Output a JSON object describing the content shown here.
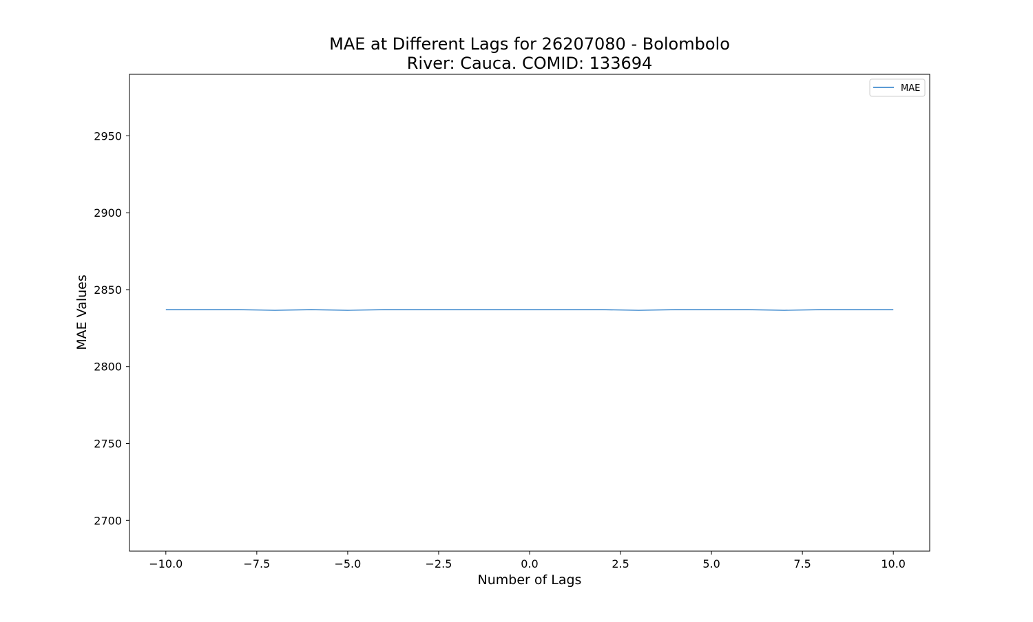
{
  "chart_data": {
    "type": "line",
    "title_line1": "MAE at Different Lags for 26207080 - Bolombolo",
    "title_line2": "River: Cauca. COMID: 133694",
    "xlabel": "Number of Lags",
    "ylabel": "MAE Values",
    "xlim": [
      -11,
      11
    ],
    "ylim": [
      2680,
      2990
    ],
    "x_ticks": [
      -10.0,
      -7.5,
      -5.0,
      -2.5,
      0.0,
      2.5,
      5.0,
      7.5,
      10.0
    ],
    "x_tick_labels": [
      "−10.0",
      "−7.5",
      "−5.0",
      "−2.5",
      "0.0",
      "2.5",
      "5.0",
      "7.5",
      "10.0"
    ],
    "y_ticks": [
      2700,
      2750,
      2800,
      2850,
      2900,
      2950
    ],
    "y_tick_labels": [
      "2700",
      "2750",
      "2800",
      "2850",
      "2900",
      "2950"
    ],
    "grid": false,
    "legend_position": "top-right",
    "series": [
      {
        "name": "MAE",
        "color": "#5b9bd5",
        "x": [
          -10,
          -9,
          -8,
          -7,
          -6,
          -5,
          -4,
          -3,
          -2,
          -1,
          0,
          1,
          2,
          3,
          4,
          5,
          6,
          7,
          8,
          9,
          10
        ],
        "values": [
          2837,
          2837,
          2837,
          2836.6,
          2837,
          2836.6,
          2837,
          2837,
          2837,
          2837,
          2837,
          2837,
          2837,
          2836.6,
          2837,
          2837,
          2837,
          2836.6,
          2837,
          2837,
          2837
        ]
      }
    ]
  }
}
